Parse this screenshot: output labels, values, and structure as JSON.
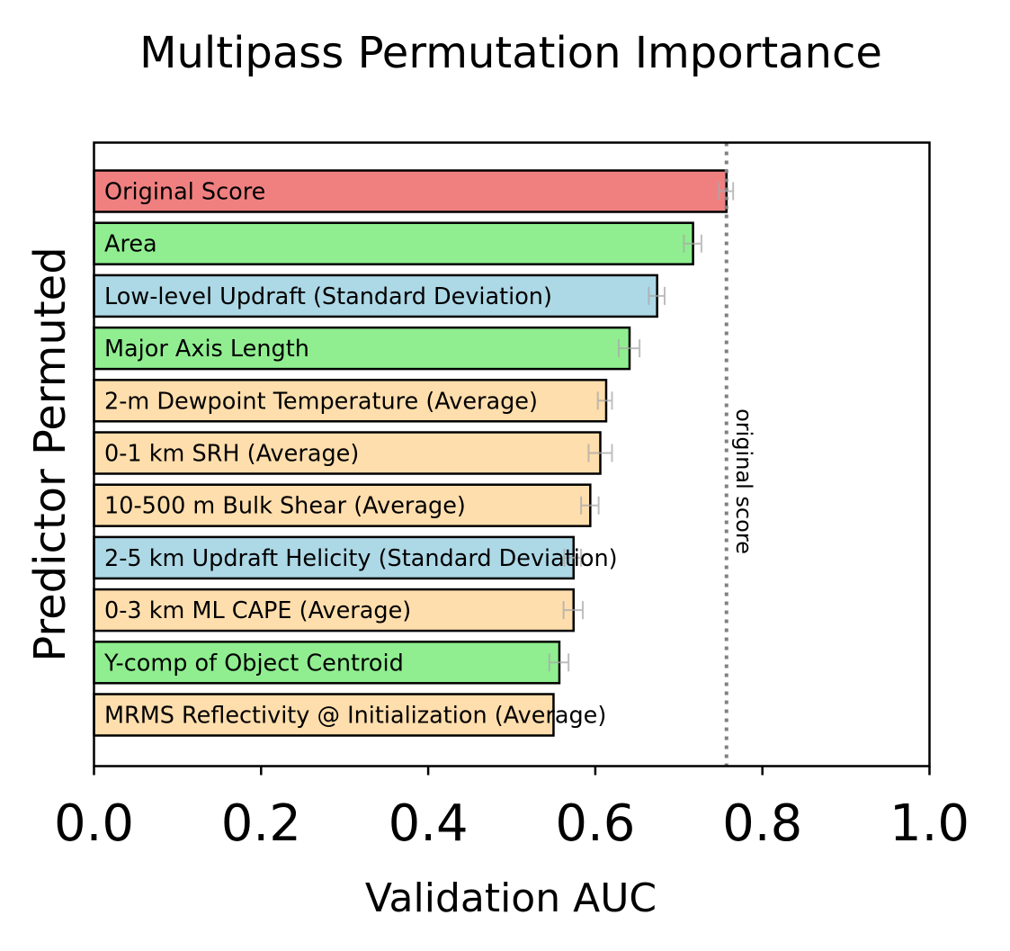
{
  "chart_data": {
    "type": "bar",
    "orientation": "horizontal",
    "title": "Multipass Permutation Importance",
    "xlabel": "Validation AUC",
    "ylabel": "Predictor Permuted",
    "xlim": [
      0.0,
      1.0
    ],
    "xticks": [
      "0.0",
      "0.2",
      "0.4",
      "0.6",
      "0.8",
      "1.0"
    ],
    "grid": false,
    "reference_line": {
      "value": 0.757,
      "label": "original score",
      "style": "dotted",
      "color": "#808080"
    },
    "categories": [
      "Original Score",
      "Area",
      "Low-level Updraft (Standard Deviation)",
      "Major Axis Length",
      "2-m Dewpoint Temperature (Average)",
      "0-1 km SRH (Average)",
      "10-500 m Bulk Shear (Average)",
      "2-5 km Updraft Helicity (Standard Deviation)",
      "0-3 km ML CAPE (Average)",
      "Y-comp of Object Centroid",
      "MRMS Reflectivity @ Initialization (Average)"
    ],
    "values": [
      0.757,
      0.717,
      0.674,
      0.641,
      0.613,
      0.606,
      0.594,
      0.574,
      0.574,
      0.557,
      0.55
    ],
    "error_low": [
      0.748,
      0.706,
      0.664,
      0.628,
      0.603,
      0.592,
      0.583,
      0.563,
      0.562,
      0.545,
      0.55
    ],
    "error_high": [
      0.765,
      0.727,
      0.683,
      0.653,
      0.62,
      0.62,
      0.604,
      0.583,
      0.585,
      0.568,
      0.55
    ],
    "colors": [
      "#f08080",
      "#90ee90",
      "#add8e6",
      "#90ee90",
      "#ffdead",
      "#ffdead",
      "#ffdead",
      "#add8e6",
      "#ffdead",
      "#90ee90",
      "#ffdead"
    ]
  }
}
